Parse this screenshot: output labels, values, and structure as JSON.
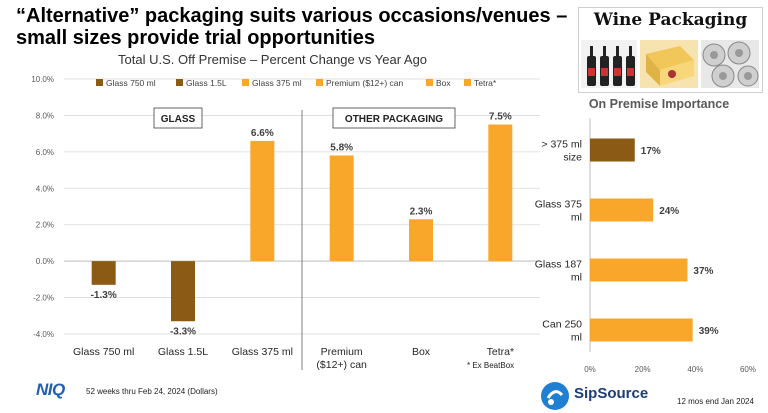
{
  "header": {
    "title_line1": "“Alternative” packaging suits various occasions/venues –",
    "title_line2": "small sizes provide trial opportunities"
  },
  "image_panel": {
    "title": "Wine Packaging"
  },
  "colors": {
    "brown": "#8b5a14",
    "orange": "#f8a72a",
    "grid": "#d9d9d9",
    "axis_text": "#595959",
    "label_text": "#404040"
  },
  "footer": {
    "source": "52 weeks thru Feb 24, 2024 (Dollars)",
    "niq_logo": "NIQ",
    "sipsource_logo": "SipSource",
    "sipsource_period": "12 mos end Jan 2024",
    "ex_note": "* Ex BeatBox"
  },
  "chart_data": [
    {
      "type": "bar",
      "title": "Total U.S. Off Premise – Percent Change vs Year Ago",
      "categories": [
        "Glass 750 ml",
        "Glass 1.5L",
        "Glass 375 ml",
        "Premium ($12+) can",
        "Box",
        "Tetra*"
      ],
      "category_lines": [
        [
          "Glass 750 ml"
        ],
        [
          "Glass 1.5L"
        ],
        [
          "Glass 375 ml"
        ],
        [
          "Premium",
          "($12+) can"
        ],
        [
          "Box"
        ],
        [
          "Tetra*"
        ]
      ],
      "values": [
        -1.3,
        -3.3,
        6.6,
        5.8,
        2.3,
        7.5
      ],
      "value_labels": [
        "-1.3%",
        "-3.3%",
        "6.6%",
        "5.8%",
        "2.3%",
        "7.5%"
      ],
      "bar_colors": [
        "#8b5a14",
        "#8b5a14",
        "#f8a72a",
        "#f8a72a",
        "#f8a72a",
        "#f8a72a"
      ],
      "legend": [
        "Glass 750 ml",
        "Glass 1.5L",
        "Glass 375 ml",
        "Premium ($12+) can",
        "Box",
        "Tetra*"
      ],
      "legend_placement": "top",
      "group_labels": [
        "GLASS",
        "OTHER PACKAGING"
      ],
      "ylim": [
        -4,
        10
      ],
      "yticks": [
        -4,
        -2,
        0,
        2,
        4,
        6,
        8,
        10
      ],
      "ytick_labels": [
        "-4.0%",
        "-2.0%",
        "0.0%",
        "2.0%",
        "4.0%",
        "6.0%",
        "8.0%",
        "10.0%"
      ],
      "grid": true
    },
    {
      "type": "bar",
      "orientation": "horizontal",
      "title": "On Premise Importance",
      "categories": [
        "> 375 ml size",
        "Glass 375 ml",
        "Glass 187 ml",
        "Can 250 ml"
      ],
      "category_lines": [
        [
          "> 375 ml",
          "size"
        ],
        [
          "Glass 375",
          "ml"
        ],
        [
          "Glass 187",
          "ml"
        ],
        [
          "Can 250",
          "ml"
        ]
      ],
      "values": [
        17,
        24,
        37,
        39
      ],
      "value_labels": [
        "17%",
        "24%",
        "37%",
        "39%"
      ],
      "bar_colors": [
        "#8b5a14",
        "#f8a72a",
        "#f8a72a",
        "#f8a72a"
      ],
      "xlim": [
        0,
        60
      ],
      "xticks": [
        0,
        20,
        40,
        60
      ],
      "xtick_labels": [
        "0%",
        "20%",
        "40%",
        "60%"
      ],
      "grid": false
    }
  ]
}
